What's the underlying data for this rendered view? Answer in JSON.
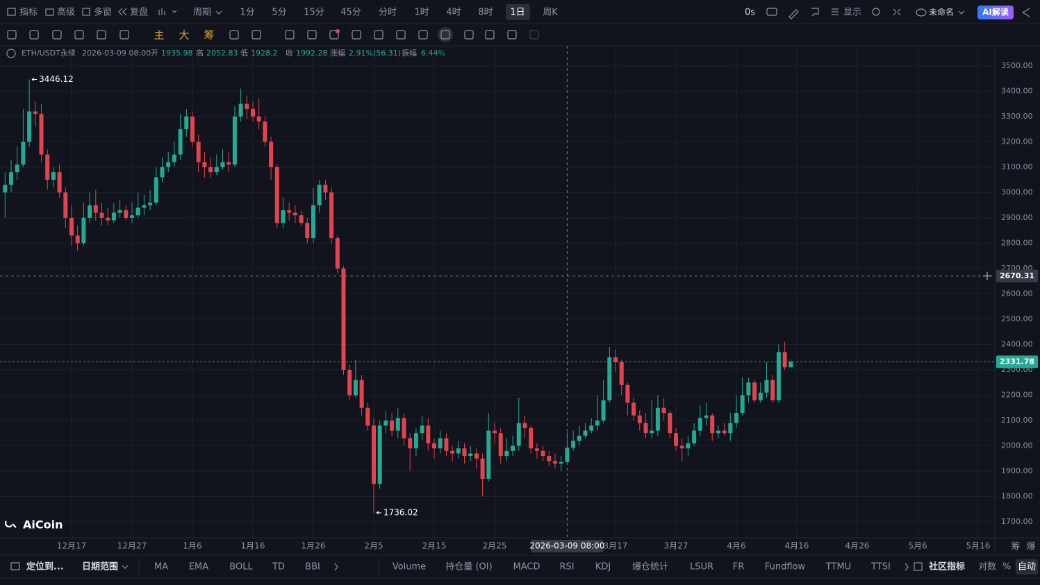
{
  "top_bar": {
    "items": [
      "指标",
      "高级",
      "多窗",
      "复盘",
      "周期"
    ],
    "periods": [
      "1分",
      "5分",
      "15分",
      "45分",
      "分时",
      "1时",
      "4时",
      "8时",
      "1日",
      "周K"
    ],
    "timer": "0s",
    "display": "显示",
    "layout_name": "未命名",
    "ai_button": "AI解读"
  },
  "tool_bar": {
    "items": [
      "主",
      "大",
      "筹"
    ]
  },
  "chart_header": {
    "symbol": "ETH/USDT永续",
    "time": "2026-03-09 08:00",
    "open_label": "开",
    "high_label": "高",
    "low_label": "低",
    "close_label": "收",
    "change_label": "涨幅",
    "change": "2.91%(56.31)",
    "amplitude_label": "振幅",
    "amplitude": "6.44%"
  },
  "chart_data": {
    "type": "candlestick",
    "up_color": "#22ab94",
    "down_color": "#e5424f",
    "open": [
      3000,
      3030,
      3080,
      3110,
      3200,
      3320,
      3310,
      3150,
      3050,
      3080,
      3000,
      2900,
      2830,
      2800,
      2900,
      2950,
      2920,
      2900,
      2890,
      2920,
      2930,
      2900,
      2910,
      2940,
      2950,
      2960,
      3060,
      3100,
      3120,
      3150,
      3250,
      3300,
      3200,
      3120,
      3100,
      3080,
      3100,
      3120,
      3110,
      3300,
      3350,
      3330,
      3300,
      3280,
      3200,
      3100,
      2880,
      2930,
      2920,
      2910,
      2880,
      2820,
      2950,
      3030,
      3000,
      2820,
      2700,
      2300,
      2200,
      2260,
      2150,
      2080,
      1850,
      2080,
      2100,
      2060,
      2110,
      2030,
      1990,
      2050,
      2080,
      2010,
      1990,
      2030,
      1980,
      1970,
      1990,
      1960,
      1970,
      1950,
      1870,
      2060,
      2050,
      1960,
      1980,
      2000,
      2090,
      2070,
      1990,
      1980,
      1960,
      1940,
      1930,
      1935.98,
      1992.28,
      2020,
      2040,
      2060,
      2080,
      2100,
      2180,
      2350,
      2330,
      2240,
      2170,
      2120,
      2090,
      2050,
      2060,
      2150,
      2130,
      2050,
      2000,
      1990,
      2010,
      2060,
      2110,
      2120,
      2050,
      2060,
      2050,
      2090,
      2130,
      2200,
      2250,
      2180,
      2210,
      2260,
      2180,
      2370,
      2310
    ],
    "high": [
      3080,
      3130,
      3180,
      3330,
      3446.12,
      3360,
      3350,
      3170,
      3100,
      3110,
      3020,
      2950,
      2870,
      2960,
      3000,
      3010,
      2960,
      2940,
      2960,
      2970,
      2950,
      2960,
      3000,
      2990,
      3010,
      3100,
      3140,
      3160,
      3200,
      3310,
      3330,
      3320,
      3230,
      3160,
      3140,
      3150,
      3170,
      3160,
      3340,
      3410,
      3380,
      3360,
      3370,
      3300,
      3220,
      3110,
      2980,
      2960,
      2950,
      2930,
      2900,
      3020,
      3050,
      3050,
      3020,
      2830,
      2710,
      2320,
      2340,
      2280,
      2170,
      2110,
      2100,
      2140,
      2130,
      2150,
      2130,
      2050,
      2070,
      2120,
      2110,
      2030,
      2060,
      2050,
      2000,
      2020,
      2010,
      2000,
      1990,
      1970,
      2130,
      2090,
      2070,
      2030,
      2040,
      2190,
      2120,
      2080,
      2010,
      2000,
      1980,
      1970,
      1960,
      2052.83,
      2060,
      2080,
      2090,
      2110,
      2200,
      2260,
      2390,
      2380,
      2340,
      2250,
      2190,
      2140,
      2130,
      2180,
      2200,
      2190,
      2140,
      2070,
      2030,
      2040,
      2090,
      2160,
      2170,
      2130,
      2080,
      2090,
      2130,
      2200,
      2270,
      2270,
      2260,
      2250,
      2330,
      2280,
      2400,
      2410,
      2340
    ],
    "low": [
      2900,
      3000,
      3050,
      3100,
      3180,
      3260,
      3120,
      3010,
      3020,
      2980,
      2860,
      2790,
      2770,
      2790,
      2880,
      2890,
      2870,
      2870,
      2880,
      2900,
      2890,
      2880,
      2900,
      2910,
      2930,
      2950,
      3040,
      3080,
      3100,
      3130,
      3220,
      3180,
      3080,
      3060,
      3060,
      3070,
      3090,
      3080,
      3100,
      3280,
      3290,
      3280,
      3250,
      3180,
      3050,
      2860,
      2860,
      2890,
      2880,
      2870,
      2800,
      2800,
      2920,
      2970,
      2800,
      2680,
      2280,
      2180,
      2190,
      2120,
      2060,
      1736.02,
      1830,
      2050,
      2040,
      2030,
      2000,
      1900,
      1960,
      2020,
      1980,
      1950,
      1970,
      1960,
      1940,
      1950,
      1930,
      1940,
      1910,
      1800,
      1860,
      2010,
      1930,
      1940,
      1960,
      1980,
      2030,
      1970,
      1950,
      1940,
      1920,
      1910,
      1900,
      1928.2,
      1980,
      2000,
      2030,
      2050,
      2060,
      2090,
      2170,
      2290,
      2200,
      2120,
      2100,
      2060,
      2030,
      2030,
      2040,
      2100,
      2030,
      1980,
      1940,
      1960,
      2000,
      2040,
      2080,
      2020,
      2030,
      2040,
      2020,
      2070,
      2120,
      2170,
      2170,
      2170,
      2190,
      2170,
      2170,
      2300,
      2320
    ],
    "close": [
      3030,
      3080,
      3110,
      3200,
      3320,
      3310,
      3150,
      3050,
      3080,
      3000,
      2900,
      2830,
      2800,
      2900,
      2950,
      2920,
      2900,
      2890,
      2920,
      2930,
      2900,
      2910,
      2940,
      2950,
      2960,
      3060,
      3100,
      3120,
      3150,
      3250,
      3300,
      3200,
      3120,
      3100,
      3080,
      3100,
      3120,
      3110,
      3300,
      3350,
      3330,
      3300,
      3280,
      3200,
      3100,
      2880,
      2930,
      2920,
      2910,
      2880,
      2820,
      2950,
      3030,
      3000,
      2820,
      2700,
      2300,
      2200,
      2260,
      2150,
      2080,
      1850,
      2080,
      2100,
      2060,
      2110,
      2030,
      1990,
      2050,
      2080,
      2010,
      1990,
      2030,
      1980,
      1970,
      1990,
      1960,
      1970,
      1950,
      1870,
      2060,
      2050,
      1960,
      1980,
      2000,
      2090,
      2070,
      1990,
      1980,
      1960,
      1940,
      1930,
      1935.98,
      1992.28,
      2020,
      2040,
      2060,
      2080,
      2100,
      2180,
      2350,
      2330,
      2240,
      2170,
      2120,
      2090,
      2050,
      2060,
      2150,
      2130,
      2050,
      2000,
      1990,
      2010,
      2060,
      2110,
      2120,
      2050,
      2060,
      2050,
      2090,
      2130,
      2200,
      2250,
      2180,
      2210,
      2260,
      2180,
      2370,
      2310,
      2331.78
    ],
    "xlim": [
      -0.84,
      163.76
    ],
    "xticks": [
      {
        "value": 11,
        "label": "12月17"
      },
      {
        "value": 21,
        "label": "12月27"
      },
      {
        "value": 31,
        "label": "1月6"
      },
      {
        "value": 41,
        "label": "1月16"
      },
      {
        "value": 51,
        "label": "1月26"
      },
      {
        "value": 61,
        "label": "2月5"
      },
      {
        "value": 71,
        "label": "2月15"
      },
      {
        "value": 81,
        "label": "2月25"
      },
      {
        "value": 101,
        "label": "3月17"
      },
      {
        "value": 111,
        "label": "3月27"
      },
      {
        "value": 121,
        "label": "4月6"
      },
      {
        "value": 131,
        "label": "4月16"
      },
      {
        "value": 141,
        "label": "4月26"
      },
      {
        "value": 151,
        "label": "5月6"
      },
      {
        "value": 161,
        "label": "5月16"
      }
    ],
    "ylim": [
      1637,
      3579
    ],
    "yticks": [
      {
        "value": 1700,
        "label": "1700.00"
      },
      {
        "value": 1800,
        "label": "1800.00"
      },
      {
        "value": 1900,
        "label": "1900.00"
      },
      {
        "value": 2000,
        "label": "2000.00"
      },
      {
        "value": 2100,
        "label": "2100.00"
      },
      {
        "value": 2200,
        "label": "2200.00"
      },
      {
        "value": 2300,
        "label": "2300.00"
      },
      {
        "value": 2400,
        "label": "2400.00"
      },
      {
        "value": 2500,
        "label": "2500.00"
      },
      {
        "value": 2600,
        "label": "2600.00"
      },
      {
        "value": 2700,
        "label": "2700.00"
      },
      {
        "value": 2800,
        "label": "2800.00"
      },
      {
        "value": 2900,
        "label": "2900.00"
      },
      {
        "value": 3000,
        "label": "3000.00"
      },
      {
        "value": 3100,
        "label": "3100.00"
      },
      {
        "value": 3200,
        "label": "3200.00"
      },
      {
        "value": 3300,
        "label": "3300.00"
      },
      {
        "value": 3400,
        "label": "3400.00"
      },
      {
        "value": 3500,
        "label": "3500.00"
      }
    ],
    "grid": true,
    "crosshair": {
      "index": 93,
      "value": 2670.31
    }
  },
  "watermark": "AiCoin",
  "bottom_bar": {
    "locate": "定位到...",
    "date_range": "日期范围",
    "indicators": [
      "MA",
      "EMA",
      "BOLL",
      "TD",
      "BBI"
    ],
    "sub_indicators": [
      "Volume",
      "持仓量 (OI)",
      "MACD",
      "RSI",
      "KDJ",
      "爆仓统计",
      "LSUR",
      "FR",
      "Fundflow",
      "TTMU",
      "TTSI"
    ],
    "community": "社区指标",
    "log": "对数",
    "percent": "%",
    "auto": "自动"
  },
  "axis_corner": [
    "筹",
    "爆"
  ]
}
